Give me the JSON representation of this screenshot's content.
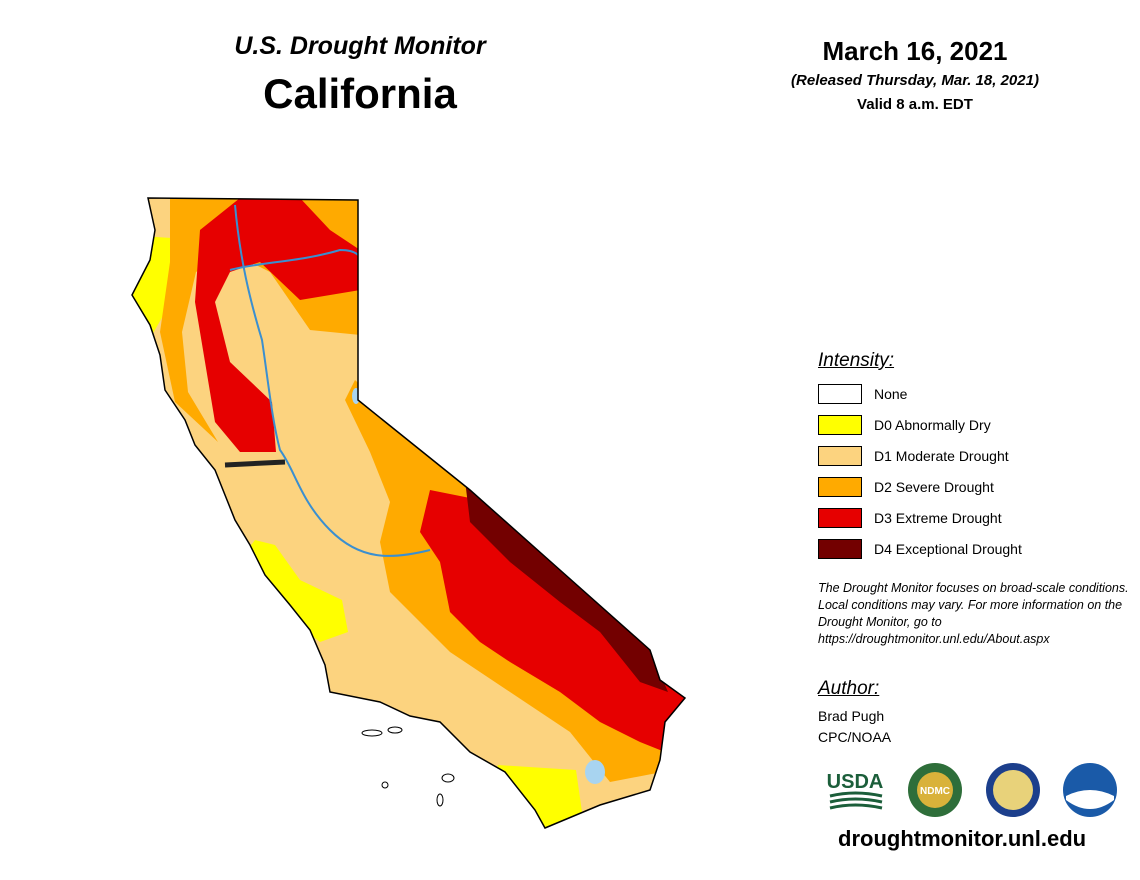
{
  "header": {
    "subtitle": "U.S. Drought Monitor",
    "title": "California"
  },
  "date": {
    "date": "March 16, 2021",
    "released": "(Released Thursday, Mar. 18, 2021)",
    "valid": "Valid 8 a.m. EDT"
  },
  "legend": {
    "title": "Intensity:",
    "items": [
      {
        "label": "None",
        "color": "#ffffff"
      },
      {
        "label": "D0 Abnormally Dry",
        "color": "#ffff00"
      },
      {
        "label": "D1 Moderate Drought",
        "color": "#fcd37f"
      },
      {
        "label": "D2 Severe Drought",
        "color": "#ffaa00"
      },
      {
        "label": "D3 Extreme Drought",
        "color": "#e60000"
      },
      {
        "label": "D4 Exceptional Drought",
        "color": "#730000"
      }
    ]
  },
  "note": "The Drought Monitor focuses on broad-scale conditions. Local conditions may vary. For more information on the Drought Monitor, go to https://droughtmonitor.unl.edu/About.aspx",
  "author": {
    "title": "Author:",
    "name": "Brad Pugh",
    "org": "CPC/NOAA"
  },
  "logos": [
    "USDA",
    "NDMC"
  ],
  "website": "droughtmonitor.unl.edu"
}
